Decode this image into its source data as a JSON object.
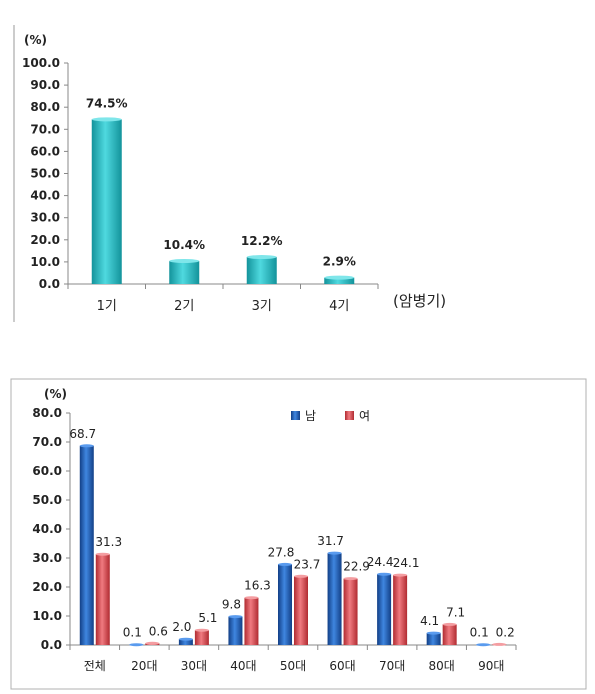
{
  "chart_data": [
    {
      "type": "bar",
      "unit_label": "(%)",
      "xlabel": "(암병기)",
      "categories": [
        "1기",
        "2기",
        "3기",
        "4기"
      ],
      "values": [
        74.5,
        10.4,
        12.2,
        2.9
      ],
      "data_labels": [
        "74.5%",
        "10.4%",
        "12.2%",
        "2.9%"
      ],
      "ylim": [
        0,
        100
      ],
      "yticks": [
        "0.0",
        "10.0",
        "20.0",
        "30.0",
        "40.0",
        "50.0",
        "60.0",
        "70.0",
        "80.0",
        "90.0",
        "100.0"
      ],
      "grid": false,
      "colors": {
        "bar": "#2bbfc7",
        "bar_dark": "#13939b"
      }
    },
    {
      "type": "bar",
      "unit_label": "(%)",
      "categories": [
        "전체",
        "20대",
        "30대",
        "40대",
        "50대",
        "60대",
        "70대",
        "80대",
        "90대"
      ],
      "series": [
        {
          "name": "남",
          "values": [
            68.7,
            0.1,
            2.0,
            9.8,
            27.8,
            31.7,
            24.4,
            4.1,
            0.1
          ]
        },
        {
          "name": "여",
          "values": [
            31.3,
            0.6,
            5.1,
            16.3,
            23.7,
            22.9,
            24.1,
            7.1,
            0.2
          ]
        }
      ],
      "data_labels": [
        [
          "68.7",
          "0.1",
          "2.0",
          "9.8",
          "27.8",
          "31.7",
          "24.4",
          "4.1",
          "0.1"
        ],
        [
          "31.3",
          "0.6",
          "5.1",
          "16.3",
          "23.7",
          "22.9",
          "24.1",
          "7.1",
          "0.2"
        ]
      ],
      "ylim": [
        0,
        80
      ],
      "yticks": [
        "0.0",
        "10.0",
        "20.0",
        "30.0",
        "40.0",
        "50.0",
        "60.0",
        "70.0",
        "80.0"
      ],
      "grid": false,
      "legend_position": "top-right",
      "colors": {
        "male": "#1f5fb5",
        "female": "#d9434a"
      }
    }
  ]
}
